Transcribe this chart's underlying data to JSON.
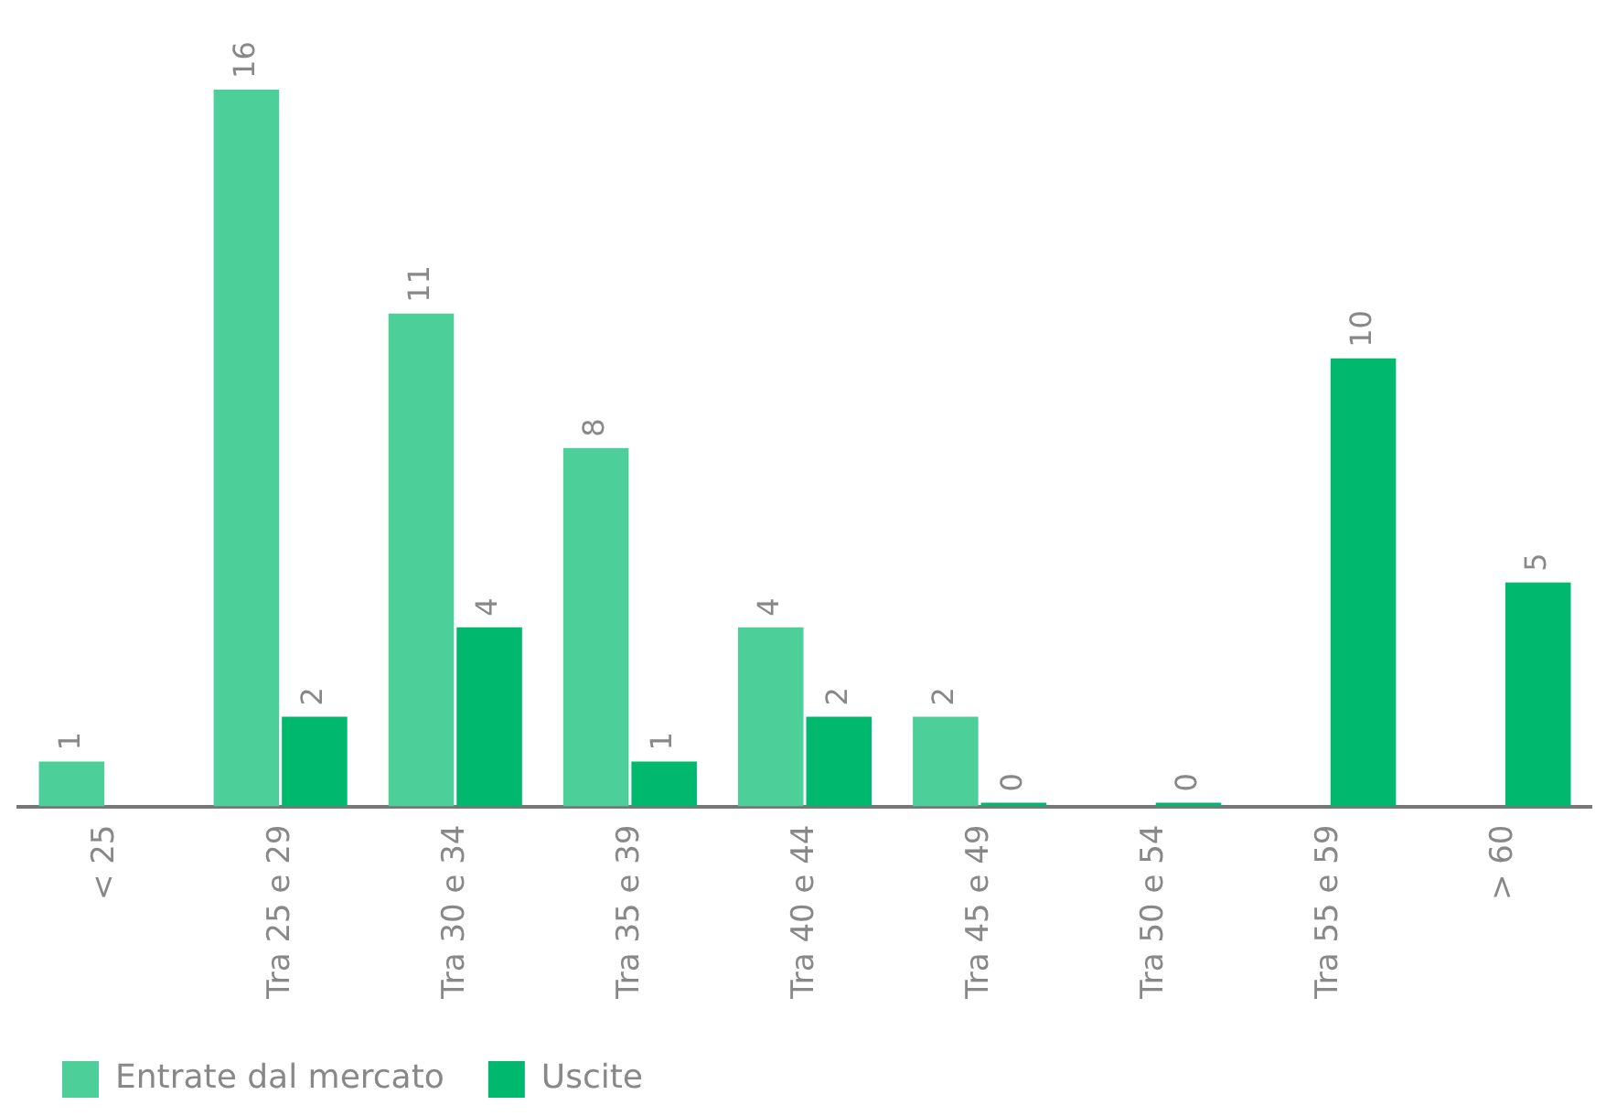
{
  "chart_data": {
    "type": "bar",
    "categories": [
      "< 25",
      "Tra 25 e 29",
      "Tra 30 e 34",
      "Tra 35 e 39",
      "Tra 40 e 44",
      "Tra 45 e 49",
      "Tra 50 e 54",
      "Tra 55 e 59",
      "> 60"
    ],
    "series": [
      {
        "name": "Entrate dal mercato",
        "color": "#4dcf9a",
        "values": [
          1,
          16,
          11,
          8,
          4,
          2,
          null,
          null,
          null
        ]
      },
      {
        "name": "Uscite",
        "color": "#00b86e",
        "values": [
          null,
          2,
          4,
          1,
          2,
          0,
          0,
          10,
          5
        ]
      }
    ],
    "data_labels": true,
    "legend": "bottom left",
    "grid": false
  }
}
